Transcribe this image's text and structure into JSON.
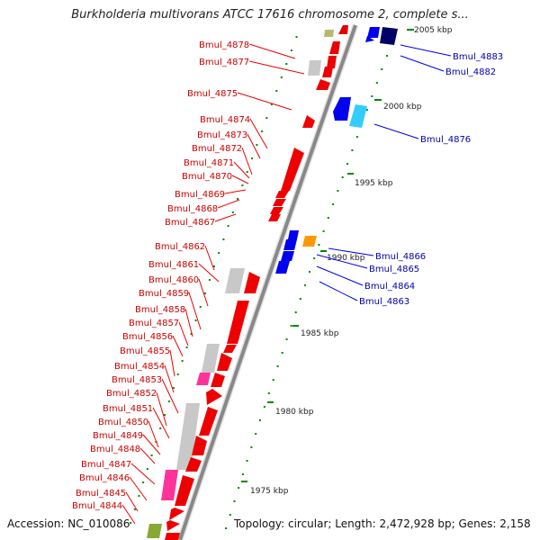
{
  "title": "Burkholderia multivorans ATCC 17616 chromosome 2, complete s...",
  "accession": "Accession: NC_010086",
  "topology": "Topology: circular; Length: 2,472,928 bp; Genes: 2,158",
  "colors": {
    "forward_gene": "#ff0000",
    "reverse_gene": "#0000ff",
    "rna": "#cccccc",
    "pseudo_pink": "#ff3399",
    "orange": "#ff9900",
    "olive": "#999933",
    "navy": "#000066",
    "cyan": "#33ccff",
    "tick": "#008800",
    "backbone": "#888888"
  },
  "scale_labels": [
    "2005 kbp",
    "2000 kbp",
    "1995 kbp",
    "1990 kbp",
    "1985 kbp",
    "1980 kbp",
    "1975 kbp"
  ],
  "left_labels": [
    "Bmul_4878",
    "Bmul_4877",
    "Bmul_4875",
    "Bmul_4874",
    "Bmul_4873",
    "Bmul_4872",
    "Bmul_4871",
    "Bmul_4870",
    "Bmul_4869",
    "Bmul_4868",
    "Bmul_4867",
    "Bmul_4862",
    "Bmul_4861",
    "Bmul_4860",
    "Bmul_4859",
    "Bmul_4858",
    "Bmul_4857",
    "Bmul_4856",
    "Bmul_4855",
    "Bmul_4854",
    "Bmul_4853",
    "Bmul_4852",
    "Bmul_4851",
    "Bmul_4850",
    "Bmul_4849",
    "Bmul_4848",
    "Bmul_4847",
    "Bmul_4846",
    "Bmul_4845",
    "Bmul_4844"
  ],
  "right_labels": [
    "Bmul_4883",
    "Bmul_4882",
    "Bmul_4876",
    "Bmul_4866",
    "Bmul_4865",
    "Bmul_4864",
    "Bmul_4863"
  ]
}
